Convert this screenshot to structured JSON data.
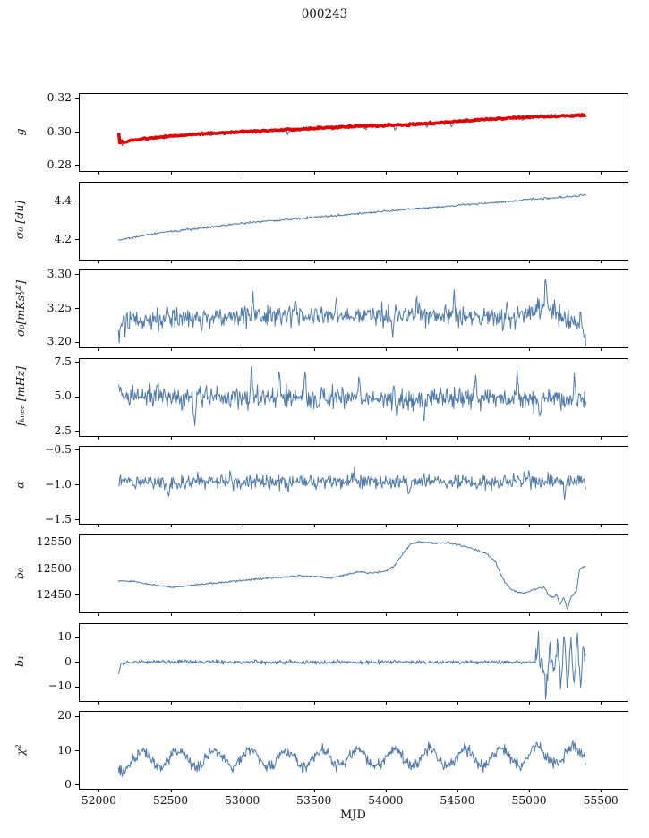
{
  "title": "000243",
  "xlabel": "MJD",
  "axes": {
    "x_range": [
      51860,
      55680
    ],
    "x_ticks": [
      52000,
      52500,
      53000,
      53500,
      54000,
      54500,
      55000,
      55500
    ],
    "x_tick_labels": [
      "52000",
      "52500",
      "53000",
      "53500",
      "54000",
      "54500",
      "55000",
      "55500"
    ]
  },
  "colors": {
    "line": "#4f7aa8",
    "fit": "#e00000",
    "axis": "#000000",
    "background": "#ffffff"
  },
  "chart_data": [
    {
      "id": "g",
      "type": "line",
      "ylabel": "g",
      "ylim": [
        0.277,
        0.323
      ],
      "yticks": [
        0.28,
        0.3,
        0.32
      ],
      "ytick_labels": [
        "0.28",
        "0.30",
        "0.32"
      ],
      "series": [
        {
          "name": "data",
          "color": "#4f7aa8",
          "width": 1,
          "seed": 11,
          "n": 620,
          "x_start": 52130,
          "x_end": 55390,
          "noise": 0.0007,
          "trend": [
            [
              52130,
              0.298
            ],
            [
              52140,
              0.294
            ],
            [
              52158,
              0.293
            ],
            [
              52180,
              0.2946
            ],
            [
              52250,
              0.2955
            ],
            [
              52400,
              0.2972
            ],
            [
              52600,
              0.2986
            ],
            [
              52800,
              0.2996
            ],
            [
              53000,
              0.3005
            ],
            [
              53200,
              0.3012
            ],
            [
              53400,
              0.302
            ],
            [
              53600,
              0.303
            ],
            [
              53800,
              0.3037
            ],
            [
              54000,
              0.3043
            ],
            [
              54200,
              0.305
            ],
            [
              54400,
              0.306
            ],
            [
              54600,
              0.3072
            ],
            [
              54800,
              0.3083
            ],
            [
              55000,
              0.3092
            ],
            [
              55200,
              0.3098
            ],
            [
              55390,
              0.3103
            ]
          ],
          "spikes": [
            [
              53310,
              -0.0028
            ],
            [
              53850,
              -0.003
            ],
            [
              54060,
              -0.0035
            ],
            [
              54280,
              -0.002
            ],
            [
              54455,
              -0.0032
            ],
            [
              54950,
              -0.0018
            ],
            [
              55150,
              -0.0015
            ]
          ]
        },
        {
          "name": "fit",
          "color": "#e00000",
          "width": 3.5,
          "seed": 5,
          "n": 460,
          "x_start": 52132,
          "x_end": 55390,
          "noise": 0.00035,
          "trend": [
            [
              52132,
              0.2998
            ],
            [
              52141,
              0.2924
            ],
            [
              52152,
              0.295
            ],
            [
              52168,
              0.294
            ],
            [
              52200,
              0.295
            ],
            [
              52300,
              0.2962
            ],
            [
              52500,
              0.298
            ],
            [
              52700,
              0.2992
            ],
            [
              52900,
              0.3001
            ],
            [
              53100,
              0.3009
            ],
            [
              53300,
              0.3016
            ],
            [
              53500,
              0.3026
            ],
            [
              53700,
              0.3034
            ],
            [
              53900,
              0.304
            ],
            [
              54100,
              0.3046
            ],
            [
              54300,
              0.3055
            ],
            [
              54500,
              0.3066
            ],
            [
              54700,
              0.3078
            ],
            [
              54900,
              0.3088
            ],
            [
              55100,
              0.3095
            ],
            [
              55300,
              0.31
            ],
            [
              55390,
              0.3103
            ]
          ]
        }
      ]
    },
    {
      "id": "sigma0_du",
      "type": "line",
      "ylabel": "σ₀ [du]",
      "ylim": [
        4.1,
        4.5
      ],
      "yticks": [
        4.2,
        4.4
      ],
      "ytick_labels": [
        "4.2",
        "4.4"
      ],
      "series": [
        {
          "name": "data",
          "color": "#4f7aa8",
          "width": 1,
          "seed": 21,
          "n": 620,
          "x_start": 52130,
          "x_end": 55390,
          "noise": 0.0035,
          "trend": [
            [
              52130,
              4.202
            ],
            [
              52200,
              4.211
            ],
            [
              52320,
              4.228
            ],
            [
              52450,
              4.242
            ],
            [
              52600,
              4.256
            ],
            [
              52800,
              4.272
            ],
            [
              53000,
              4.29
            ],
            [
              53200,
              4.302
            ],
            [
              53400,
              4.314
            ],
            [
              53600,
              4.326
            ],
            [
              53800,
              4.338
            ],
            [
              54000,
              4.352
            ],
            [
              54200,
              4.364
            ],
            [
              54400,
              4.375
            ],
            [
              54600,
              4.389
            ],
            [
              54800,
              4.399
            ],
            [
              55000,
              4.413
            ],
            [
              55150,
              4.421
            ],
            [
              55300,
              4.428
            ],
            [
              55390,
              4.437
            ]
          ]
        }
      ]
    },
    {
      "id": "sigma0_mks",
      "type": "line",
      "ylabel": "σ₀[mKs¹⁄²]",
      "ylim": [
        3.193,
        3.307
      ],
      "yticks": [
        3.2,
        3.25,
        3.3
      ],
      "ytick_labels": [
        "3.20",
        "3.25",
        "3.30"
      ],
      "series": [
        {
          "name": "data",
          "color": "#4f7aa8",
          "width": 1,
          "seed": 31,
          "n": 640,
          "x_start": 52130,
          "x_end": 55390,
          "noise": 0.01,
          "trend": [
            [
              52130,
              3.206
            ],
            [
              52150,
              3.224
            ],
            [
              52220,
              3.231
            ],
            [
              52400,
              3.236
            ],
            [
              52700,
              3.239
            ],
            [
              53100,
              3.239
            ],
            [
              53500,
              3.238
            ],
            [
              53900,
              3.241
            ],
            [
              54300,
              3.24
            ],
            [
              54600,
              3.238
            ],
            [
              54800,
              3.234
            ],
            [
              54950,
              3.239
            ],
            [
              55060,
              3.246
            ],
            [
              55120,
              3.256
            ],
            [
              55180,
              3.246
            ],
            [
              55260,
              3.235
            ],
            [
              55330,
              3.23
            ],
            [
              55390,
              3.219
            ]
          ],
          "spikes": [
            [
              52470,
              0.022
            ],
            [
              52710,
              -0.02
            ],
            [
              53070,
              0.028
            ],
            [
              53360,
              0.026
            ],
            [
              53650,
              0.024
            ],
            [
              54040,
              -0.031
            ],
            [
              54210,
              0.024
            ],
            [
              54470,
              0.03
            ],
            [
              54840,
              0.026
            ],
            [
              55110,
              0.03
            ],
            [
              55385,
              -0.016
            ]
          ]
        }
      ]
    },
    {
      "id": "f_knee",
      "type": "line",
      "ylabel": "fₖₙₑₑ [mHz]",
      "ylim": [
        2.2,
        7.8
      ],
      "yticks": [
        2.5,
        5.0,
        7.5
      ],
      "ytick_labels": [
        "2.5",
        "5.0",
        "7.5"
      ],
      "series": [
        {
          "name": "data",
          "color": "#4f7aa8",
          "width": 1,
          "seed": 41,
          "n": 680,
          "x_start": 52130,
          "x_end": 55390,
          "noise": 0.5,
          "trend": [
            [
              52130,
              5.55
            ],
            [
              52200,
              5.1
            ],
            [
              52500,
              5.0
            ],
            [
              53500,
              4.95
            ],
            [
              54500,
              4.95
            ],
            [
              55390,
              4.9
            ]
          ],
          "spikes": [
            [
              52400,
              1.6
            ],
            [
              52660,
              -1.9
            ],
            [
              53060,
              2.3
            ],
            [
              53250,
              1.8
            ],
            [
              53430,
              2.0
            ],
            [
              53810,
              1.7
            ],
            [
              54075,
              -1.7
            ],
            [
              54260,
              -1.6
            ],
            [
              54620,
              2.2
            ],
            [
              54910,
              1.8
            ],
            [
              55070,
              -1.8
            ],
            [
              55310,
              1.9
            ]
          ]
        }
      ]
    },
    {
      "id": "alpha",
      "type": "line",
      "ylabel": "α",
      "ylim": [
        -1.55,
        -0.45
      ],
      "yticks": [
        -1.5,
        -1.0,
        -0.5
      ],
      "ytick_labels": [
        "−1.5",
        "−1.0",
        "−0.5"
      ],
      "series": [
        {
          "name": "data",
          "color": "#4f7aa8",
          "width": 1,
          "seed": 51,
          "n": 680,
          "x_start": 52130,
          "x_end": 55390,
          "noise": 0.065,
          "trend": [
            [
              52130,
              -0.92
            ],
            [
              52250,
              -0.95
            ],
            [
              55390,
              -0.95
            ]
          ],
          "spikes": [
            [
              52480,
              -0.22
            ],
            [
              52910,
              0.17
            ],
            [
              53310,
              -0.2
            ],
            [
              53770,
              0.16
            ],
            [
              54160,
              -0.22
            ],
            [
              54630,
              -0.18
            ],
            [
              54990,
              0.15
            ],
            [
              55240,
              -0.2
            ]
          ]
        }
      ]
    },
    {
      "id": "b0",
      "type": "line",
      "ylabel": "b₀",
      "ylim": [
        12418,
        12565
      ],
      "yticks": [
        12450,
        12500,
        12550
      ],
      "ytick_labels": [
        "12450",
        "12500",
        "12550"
      ],
      "series": [
        {
          "name": "data",
          "color": "#4f7aa8",
          "width": 1,
          "seed": 61,
          "n": 640,
          "x_start": 52130,
          "x_end": 55390,
          "noise": 1.1,
          "trend": [
            [
              52130,
              12478
            ],
            [
              52250,
              12477
            ],
            [
              52400,
              12469
            ],
            [
              52520,
              12466
            ],
            [
              52650,
              12470
            ],
            [
              52800,
              12474
            ],
            [
              53000,
              12479
            ],
            [
              53200,
              12484
            ],
            [
              53400,
              12488
            ],
            [
              53530,
              12486
            ],
            [
              53600,
              12483
            ],
            [
              53700,
              12489
            ],
            [
              53800,
              12495
            ],
            [
              53900,
              12493
            ],
            [
              54000,
              12497
            ],
            [
              54060,
              12508
            ],
            [
              54120,
              12533
            ],
            [
              54170,
              12549
            ],
            [
              54230,
              12553
            ],
            [
              54330,
              12550
            ],
            [
              54430,
              12551
            ],
            [
              54530,
              12545
            ],
            [
              54630,
              12537
            ],
            [
              54710,
              12528
            ],
            [
              54760,
              12514
            ],
            [
              54810,
              12482
            ],
            [
              54860,
              12464
            ],
            [
              54910,
              12457
            ],
            [
              54960,
              12455
            ],
            [
              55010,
              12460
            ],
            [
              55060,
              12464
            ],
            [
              55100,
              12466
            ],
            [
              55130,
              12450
            ],
            [
              55160,
              12446
            ],
            [
              55185,
              12452
            ],
            [
              55210,
              12433
            ],
            [
              55235,
              12447
            ],
            [
              55260,
              12428
            ],
            [
              55285,
              12447
            ],
            [
              55305,
              12452
            ],
            [
              55325,
              12460
            ],
            [
              55345,
              12500
            ],
            [
              55370,
              12505
            ],
            [
              55390,
              12507
            ]
          ],
          "spikes": [
            [
              55262,
              -6
            ]
          ]
        }
      ]
    },
    {
      "id": "b1",
      "type": "line",
      "ylabel": "b₁",
      "ylim": [
        -15.5,
        16
      ],
      "yticks": [
        -10,
        0,
        10
      ],
      "ytick_labels": [
        "−10",
        "0",
        "10"
      ],
      "series": [
        {
          "name": "data",
          "color": "#4f7aa8",
          "width": 1,
          "seed": 71,
          "n": 720,
          "x_start": 52130,
          "x_end": 55390,
          "noise_segments": [
            [
              52130,
              55035,
              0.5
            ],
            [
              55035,
              55390,
              3.2
            ]
          ],
          "trend": [
            [
              52130,
              -4.5
            ],
            [
              52148,
              -0.5
            ],
            [
              52175,
              0.4
            ],
            [
              52500,
              0.5
            ],
            [
              54900,
              0.4
            ],
            [
              55390,
              0.3
            ]
          ],
          "spikes": [
            [
              55058,
              10.5
            ],
            [
              55112,
              -13
            ],
            [
              55140,
              7
            ],
            [
              55165,
              -8
            ],
            [
              55190,
              9
            ],
            [
              55215,
              -11
            ],
            [
              55240,
              8
            ],
            [
              55262,
              -9.5
            ],
            [
              55285,
              10.5
            ],
            [
              55308,
              -6.5
            ],
            [
              55330,
              9
            ],
            [
              55352,
              -5
            ],
            [
              55375,
              7.5
            ]
          ]
        }
      ]
    },
    {
      "id": "chi2",
      "type": "line",
      "ylabel": "χ²",
      "ylim": [
        -1,
        21.5
      ],
      "yticks": [
        0,
        10,
        20
      ],
      "ytick_labels": [
        "0",
        "10",
        "20"
      ],
      "series": [
        {
          "name": "data",
          "color": "#4f7aa8",
          "width": 1,
          "seed": 81,
          "n": 720,
          "x_start": 52130,
          "x_end": 55390,
          "noise": 1.05,
          "trend": [
            [
              52130,
              6.2
            ],
            [
              52220,
              7.6
            ],
            [
              52600,
              7.8
            ],
            [
              53600,
              7.9
            ],
            [
              54600,
              8.1
            ],
            [
              55200,
              8.6
            ],
            [
              55390,
              8.8
            ]
          ],
          "osc": {
            "amp": 2.5,
            "period": 250,
            "peak": 52300
          }
        }
      ]
    }
  ]
}
